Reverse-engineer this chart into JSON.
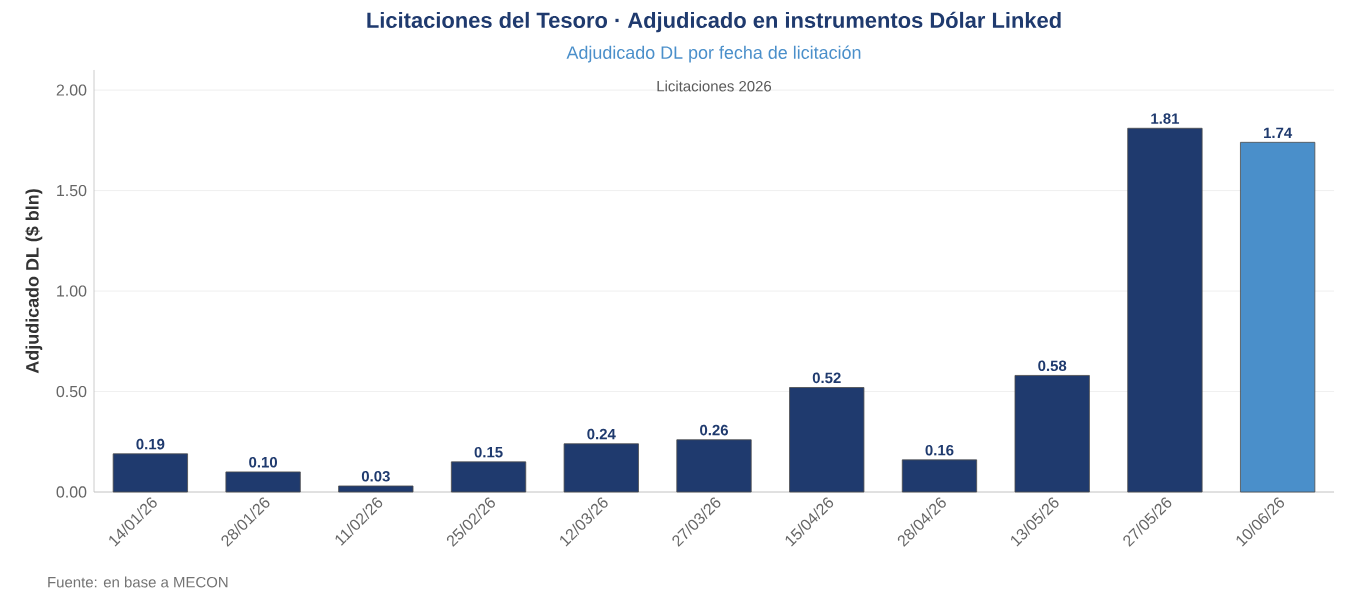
{
  "chart_data": {
    "type": "bar",
    "title": "Licitaciones del Tesoro · Adjudicado en instrumentos Dólar Linked",
    "subtitle": "Adjudicado DL por fecha de licitación",
    "ylabel": "Adjudicado DL ($ bln)",
    "annotations": [
      "Licitaciones 2026",
      "Fuente: en base a MECON"
    ],
    "categories": [
      "14/01/26",
      "28/01/26",
      "11/02/26",
      "25/02/26",
      "12/03/26",
      "27/03/26",
      "15/04/26",
      "28/04/26",
      "13/05/26",
      "27/05/26",
      "10/06/26"
    ],
    "values": [
      0.19,
      0.1,
      0.03,
      0.15,
      0.24,
      0.26,
      0.52,
      0.16,
      0.58,
      1.81,
      1.74
    ],
    "value_labels": [
      "0.19",
      "0.10",
      "0.03",
      "0.15",
      "0.24",
      "0.26",
      "0.52",
      "0.16",
      "0.58",
      "1.81",
      "1.74"
    ],
    "colors": [
      "#1f3a6e",
      "#1f3a6e",
      "#1f3a6e",
      "#1f3a6e",
      "#1f3a6e",
      "#1f3a6e",
      "#1f3a6e",
      "#1f3a6e",
      "#1f3a6e",
      "#1f3a6e",
      "#4a8fca"
    ],
    "ylim": [
      0,
      2.1
    ],
    "yticks": [
      {
        "value": 0,
        "label": "0.00"
      },
      {
        "value": 0.5,
        "label": "0.50"
      },
      {
        "value": 1,
        "label": "1.00"
      },
      {
        "value": 1.5,
        "label": "1.50"
      },
      {
        "value": 2,
        "label": "2.00"
      }
    ],
    "grid": "y"
  }
}
